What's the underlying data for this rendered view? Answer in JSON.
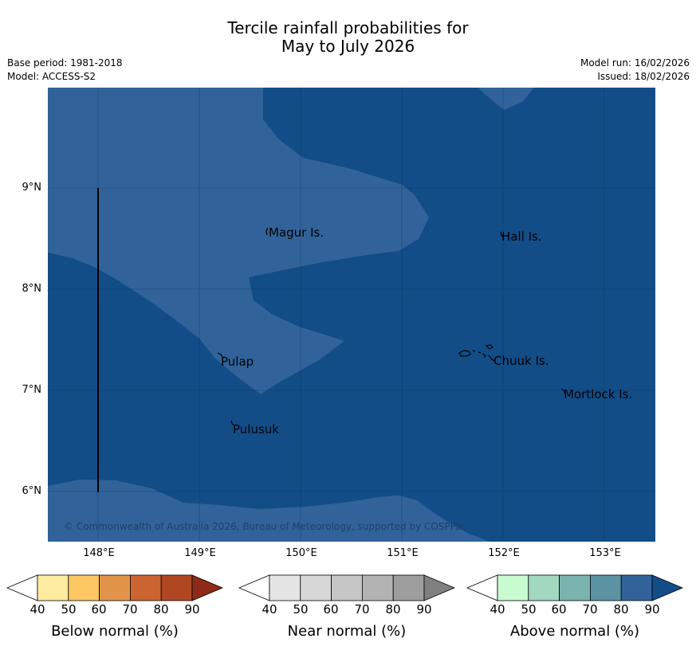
{
  "title": {
    "line1": "Tercile rainfall probabilities for",
    "line2": "May to July 2026"
  },
  "meta": {
    "base_period": "Base period: 1981-2018",
    "model": "Model: ACCESS-S2",
    "model_run": "Model run: 16/02/2026",
    "issued": "Issued: 18/02/2026"
  },
  "map": {
    "lat_labels": [
      "9°N",
      "8°N",
      "7°N",
      "6°N"
    ],
    "lon_labels": [
      "148°E",
      "149°E",
      "150°E",
      "151°E",
      "152°E",
      "153°E"
    ],
    "places": [
      "Magur Is.",
      "Hall Is.",
      "Pulap",
      "Chuuk Is.",
      "Mortlock Is.",
      "Pulusuk"
    ],
    "credit": "© Commonwealth of Australia 2026, Bureau of Meteorology, supported by COSPPac",
    "fill_above_80_90": "#31639a",
    "fill_above_90plus": "#124d88"
  },
  "colorbars": [
    {
      "title": "Below normal (%)",
      "ticks": [
        "40",
        "50",
        "60",
        "70",
        "80",
        "90"
      ],
      "colors": [
        "#ffffff",
        "#fdeba0",
        "#fdc763",
        "#e2954a",
        "#cc6431",
        "#b04723",
        "#8e2a17"
      ]
    },
    {
      "title": "Near normal (%)",
      "ticks": [
        "40",
        "50",
        "60",
        "70",
        "80",
        "90"
      ],
      "colors": [
        "#ffffff",
        "#e5e5e5",
        "#d7d7d7",
        "#c6c6c6",
        "#b3b3b3",
        "#9e9e9e",
        "#808080"
      ]
    },
    {
      "title": "Above normal (%)",
      "ticks": [
        "40",
        "50",
        "60",
        "70",
        "80",
        "90"
      ],
      "colors": [
        "#ffffff",
        "#c8fbd0",
        "#a2d8c0",
        "#7bb3ae",
        "#5c93a3",
        "#31639a",
        "#124d88"
      ]
    }
  ]
}
